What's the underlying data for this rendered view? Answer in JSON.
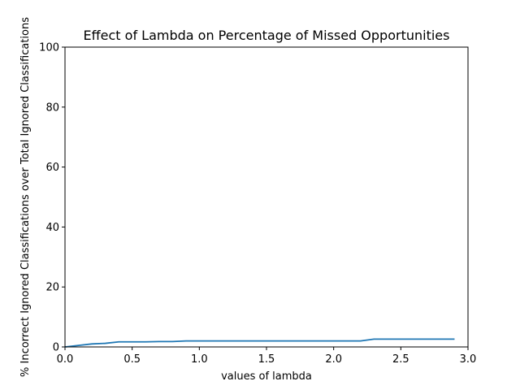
{
  "chart_data": {
    "type": "line",
    "title": "Effect of Lambda on Percentage of Missed Opportunities",
    "xlabel": "values of lambda",
    "ylabel": "% Incorrect Ignored Classifications over Total Ignored Classifications",
    "xlim": [
      0.0,
      3.0
    ],
    "ylim": [
      0,
      100
    ],
    "x_ticks": [
      "0.0",
      "0.5",
      "1.0",
      "1.5",
      "2.0",
      "2.5",
      "3.0"
    ],
    "y_ticks": [
      "0",
      "20",
      "40",
      "60",
      "80",
      "100"
    ],
    "grid": false,
    "series": [
      {
        "color": "#1f77b4",
        "x": [
          0.0,
          0.1,
          0.2,
          0.3,
          0.4,
          0.5,
          0.6,
          0.7,
          0.8,
          0.9,
          1.0,
          1.1,
          1.2,
          1.3,
          1.4,
          1.5,
          1.6,
          1.7,
          1.8,
          1.9,
          2.0,
          2.1,
          2.2,
          2.3,
          2.4,
          2.5,
          2.6,
          2.7,
          2.8,
          2.9
        ],
        "y": [
          0.0,
          0.5,
          1.0,
          1.2,
          1.7,
          1.7,
          1.7,
          1.8,
          1.8,
          2.0,
          2.0,
          2.0,
          2.0,
          2.0,
          2.0,
          2.0,
          2.0,
          2.0,
          2.0,
          2.0,
          2.0,
          2.0,
          2.0,
          2.6,
          2.6,
          2.6,
          2.6,
          2.6,
          2.6,
          2.6
        ]
      }
    ]
  }
}
